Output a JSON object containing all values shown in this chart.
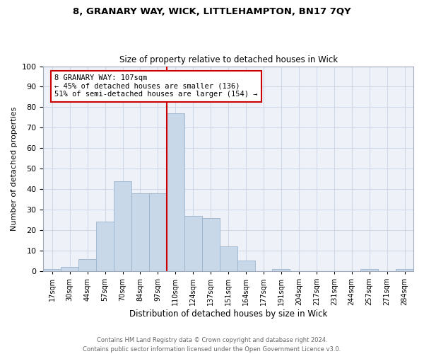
{
  "title": "8, GRANARY WAY, WICK, LITTLEHAMPTON, BN17 7QY",
  "subtitle": "Size of property relative to detached houses in Wick",
  "xlabel": "Distribution of detached houses by size in Wick",
  "ylabel": "Number of detached properties",
  "categories": [
    "17sqm",
    "30sqm",
    "44sqm",
    "57sqm",
    "70sqm",
    "84sqm",
    "97sqm",
    "110sqm",
    "124sqm",
    "137sqm",
    "151sqm",
    "164sqm",
    "177sqm",
    "191sqm",
    "204sqm",
    "217sqm",
    "231sqm",
    "244sqm",
    "257sqm",
    "271sqm",
    "284sqm"
  ],
  "values": [
    1,
    2,
    6,
    24,
    44,
    38,
    38,
    77,
    27,
    26,
    12,
    5,
    0,
    1,
    0,
    0,
    0,
    0,
    1,
    0,
    1
  ],
  "bar_color": "#c8d8e8",
  "bar_edge_color": "#9ab4cc",
  "grid_color": "#d0d8e8",
  "property_line_color": "#cc0000",
  "annotation_text": "8 GRANARY WAY: 107sqm\n← 45% of detached houses are smaller (136)\n51% of semi-detached houses are larger (154) →",
  "annotation_box_color": "#ffffff",
  "annotation_box_edge": "#cc0000",
  "footer_text": "Contains HM Land Registry data © Crown copyright and database right 2024.\nContains public sector information licensed under the Open Government Licence v3.0.",
  "ylim": [
    0,
    100
  ],
  "figsize": [
    6.0,
    5.0
  ],
  "dpi": 100
}
